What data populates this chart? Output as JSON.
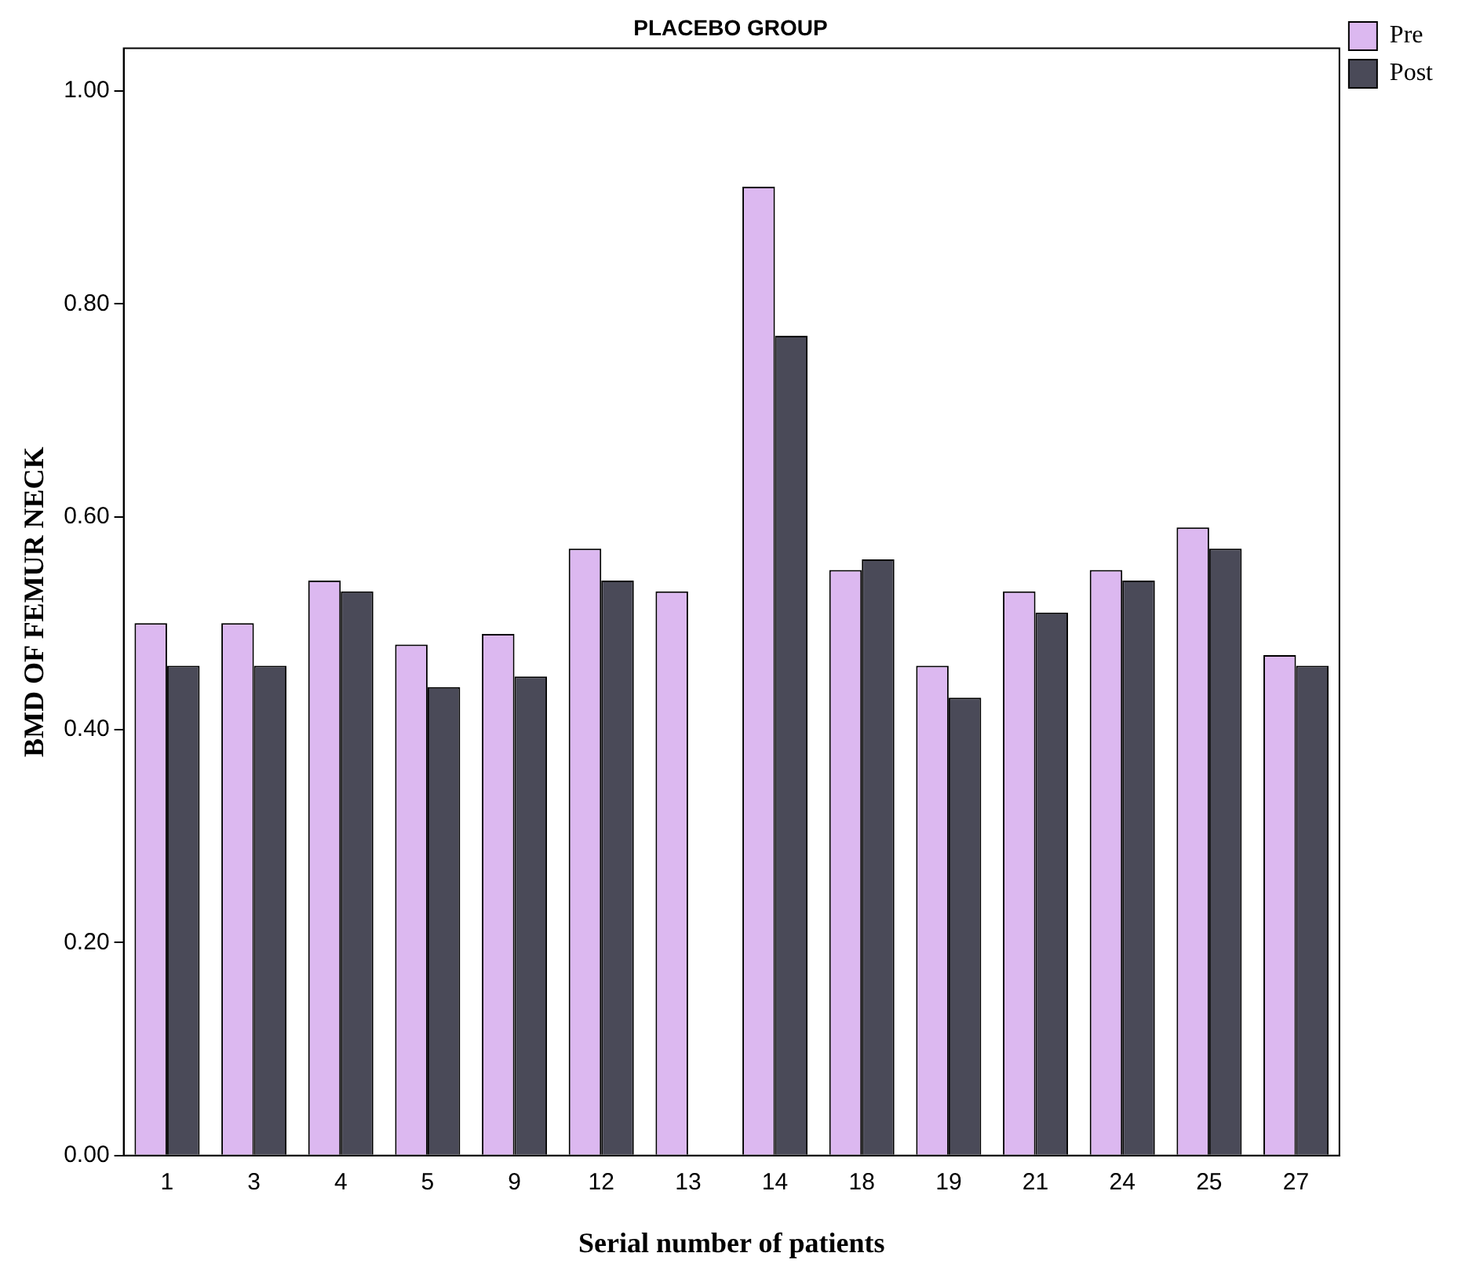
{
  "chart_data": {
    "type": "bar",
    "title": "PLACEBO GROUP",
    "xlabel": "Serial number of patients",
    "ylabel": "BMD OF FEMUR NECK",
    "categories": [
      "1",
      "3",
      "4",
      "5",
      "9",
      "12",
      "13",
      "14",
      "18",
      "19",
      "21",
      "24",
      "25",
      "27"
    ],
    "series": [
      {
        "name": "Pre",
        "color": "#dcb8f0",
        "values": [
          0.5,
          0.5,
          0.54,
          0.48,
          0.49,
          0.57,
          0.53,
          0.91,
          0.55,
          0.46,
          0.53,
          0.55,
          0.59,
          0.47
        ]
      },
      {
        "name": "Post",
        "color": "#4a4a58",
        "values": [
          0.46,
          0.46,
          0.53,
          0.44,
          0.45,
          0.54,
          0,
          0.77,
          0.56,
          0.43,
          0.51,
          0.54,
          0.57,
          0.46
        ]
      }
    ],
    "ylim": [
      0,
      1.04
    ],
    "yticks": [
      {
        "value": 0,
        "label": "0.00"
      },
      {
        "value": 0.2,
        "label": "0.20"
      },
      {
        "value": 0.4,
        "label": "0.40"
      },
      {
        "value": 0.6,
        "label": "0.60"
      },
      {
        "value": 0.8,
        "label": "0.80"
      },
      {
        "value": 1,
        "label": "1.00"
      }
    ],
    "grid": false,
    "legend": "top right"
  }
}
